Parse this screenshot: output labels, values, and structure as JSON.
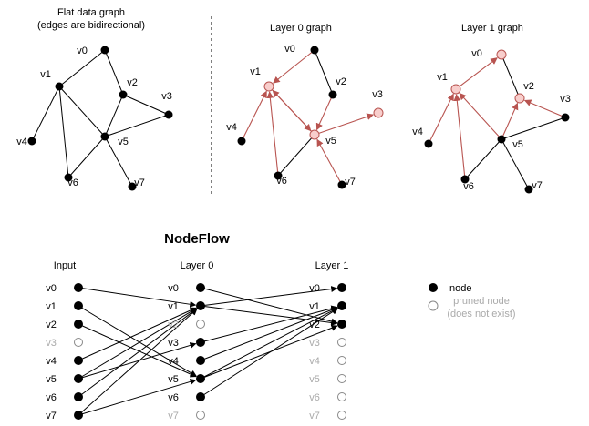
{
  "titles": {
    "flat_line1": "Flat data graph",
    "flat_line2": "(edges are bidirectional)",
    "layer0": "Layer 0 graph",
    "layer1": "Layer 1 graph",
    "nodeflow": "NodeFlow",
    "input_col": "Input",
    "layer0_col": "Layer 0",
    "layer1_col": "Layer 1"
  },
  "legend": {
    "node": "node",
    "pruned_line1": "pruned node",
    "pruned_line2": "(does not exist)"
  },
  "node_labels": [
    "v0",
    "v1",
    "v2",
    "v3",
    "v4",
    "v5",
    "v6",
    "v7"
  ],
  "colors": {
    "node_fill": "#000000",
    "highlight_fill": "#f8cecc",
    "highlight_stroke": "#b85450",
    "red_edge": "#b85450",
    "black_edge": "#000000",
    "pruned_text": "#aaaaaa",
    "pruned_stroke": "#888888"
  },
  "flat_graph": {
    "edges": [
      [
        0,
        1
      ],
      [
        0,
        2
      ],
      [
        1,
        4
      ],
      [
        1,
        6
      ],
      [
        1,
        5
      ],
      [
        2,
        5
      ],
      [
        2,
        3
      ],
      [
        5,
        3
      ],
      [
        5,
        6
      ],
      [
        5,
        7
      ]
    ]
  },
  "layer0_graph": {
    "highlighted": [
      1,
      5,
      3
    ],
    "red_edges": [
      [
        0,
        1
      ],
      [
        2,
        5
      ],
      [
        5,
        1
      ],
      [
        1,
        5
      ],
      [
        4,
        1
      ],
      [
        6,
        1
      ],
      [
        5,
        3
      ],
      [
        7,
        5
      ]
    ],
    "black_edges": [
      [
        0,
        2
      ],
      [
        6,
        5
      ]
    ]
  },
  "layer1_graph": {
    "highlighted": [
      0,
      1,
      2
    ],
    "red_edges": [
      [
        1,
        0
      ],
      [
        4,
        1
      ],
      [
        5,
        1
      ],
      [
        5,
        2
      ],
      [
        6,
        1
      ],
      [
        3,
        2
      ]
    ],
    "black_edges": [
      [
        0,
        2
      ],
      [
        5,
        3
      ],
      [
        5,
        6
      ],
      [
        5,
        7
      ]
    ]
  },
  "nodeflow": {
    "input_pruned": [
      3
    ],
    "layer0_pruned": [
      2,
      7
    ],
    "layer1_pruned": [
      3,
      4,
      5,
      6,
      7
    ],
    "edges_input_to_layer0": [
      [
        0,
        1
      ],
      [
        1,
        5
      ],
      [
        2,
        5
      ],
      [
        4,
        1
      ],
      [
        5,
        1
      ],
      [
        5,
        3
      ],
      [
        6,
        1
      ],
      [
        7,
        1
      ],
      [
        7,
        5
      ]
    ],
    "edges_layer0_to_layer1": [
      [
        0,
        2
      ],
      [
        1,
        0
      ],
      [
        1,
        2
      ],
      [
        3,
        1
      ],
      [
        4,
        1
      ],
      [
        5,
        1
      ],
      [
        5,
        2
      ],
      [
        6,
        1
      ]
    ]
  }
}
